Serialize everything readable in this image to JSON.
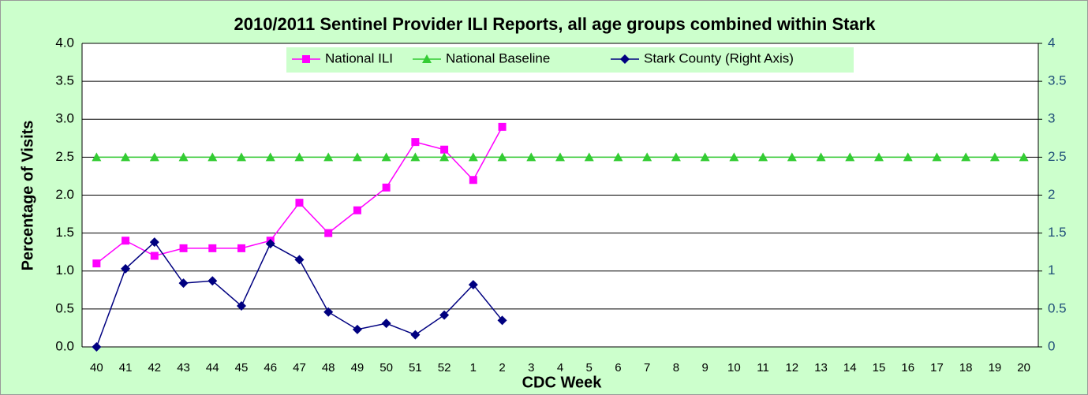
{
  "chart_data": {
    "type": "line",
    "title": "2010/2011 Sentinel Provider ILI Reports, all age groups combined within Stark",
    "x_label": "CDC Week",
    "y_label": "Percentage of Visits",
    "categories": [
      "40",
      "41",
      "42",
      "43",
      "44",
      "45",
      "46",
      "47",
      "48",
      "49",
      "50",
      "51",
      "52",
      "1",
      "2",
      "3",
      "4",
      "5",
      "6",
      "7",
      "8",
      "9",
      "10",
      "11",
      "12",
      "13",
      "14",
      "15",
      "16",
      "17",
      "18",
      "19",
      "20"
    ],
    "ylim": [
      0,
      4
    ],
    "yticks": [
      {
        "value": 0,
        "label": "0.0"
      },
      {
        "value": 0.5,
        "label": "0.5"
      },
      {
        "value": 1,
        "label": "1.0"
      },
      {
        "value": 1.5,
        "label": "1.5"
      },
      {
        "value": 2,
        "label": "2.0"
      },
      {
        "value": 2.5,
        "label": "2.5"
      },
      {
        "value": 3,
        "label": "3.0"
      },
      {
        "value": 3.5,
        "label": "3.5"
      },
      {
        "value": 4,
        "label": "4.0"
      }
    ],
    "y2lim": [
      0,
      4
    ],
    "y2ticks": [
      0,
      0.5,
      1,
      1.5,
      2,
      2.5,
      3,
      3.5,
      4
    ],
    "grid": true,
    "legend": "top",
    "series": [
      {
        "name": "National ILI",
        "color": "#ff00ff",
        "marker": "square",
        "values": [
          1.1,
          1.4,
          1.2,
          1.3,
          1.3,
          1.3,
          1.4,
          1.9,
          1.5,
          1.8,
          2.1,
          2.7,
          2.6,
          2.2,
          2.9,
          null,
          null,
          null,
          null,
          null,
          null,
          null,
          null,
          null,
          null,
          null,
          null,
          null,
          null,
          null,
          null,
          null,
          null
        ]
      },
      {
        "name": "National Baseline",
        "color": "#33cc33",
        "marker": "triangle",
        "values": [
          2.5,
          2.5,
          2.5,
          2.5,
          2.5,
          2.5,
          2.5,
          2.5,
          2.5,
          2.5,
          2.5,
          2.5,
          2.5,
          2.5,
          2.5,
          2.5,
          2.5,
          2.5,
          2.5,
          2.5,
          2.5,
          2.5,
          2.5,
          2.5,
          2.5,
          2.5,
          2.5,
          2.5,
          2.5,
          2.5,
          2.5,
          2.5,
          2.5
        ]
      },
      {
        "name": "Stark County (Right Axis)",
        "color": "#000080",
        "marker": "diamond",
        "axis": "y2",
        "values": [
          0,
          1.03,
          1.38,
          0.84,
          0.87,
          0.54,
          1.36,
          1.15,
          0.46,
          0.23,
          0.31,
          0.16,
          0.42,
          0.82,
          0.35,
          null,
          null,
          null,
          null,
          null,
          null,
          null,
          null,
          null,
          null,
          null,
          null,
          null,
          null,
          null,
          null,
          null,
          null
        ]
      }
    ]
  }
}
